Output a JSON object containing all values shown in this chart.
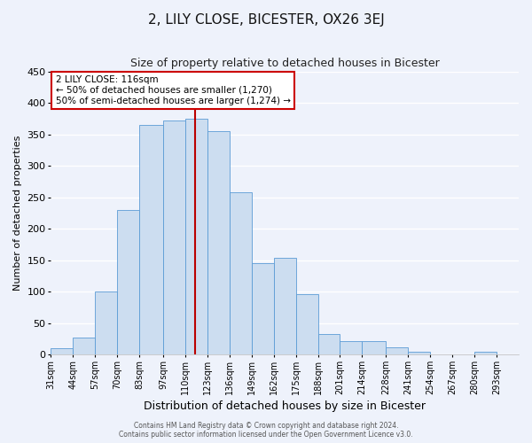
{
  "title": "2, LILY CLOSE, BICESTER, OX26 3EJ",
  "subtitle": "Size of property relative to detached houses in Bicester",
  "xlabel": "Distribution of detached houses by size in Bicester",
  "ylabel": "Number of detached properties",
  "bar_labels": [
    "31sqm",
    "44sqm",
    "57sqm",
    "70sqm",
    "83sqm",
    "97sqm",
    "110sqm",
    "123sqm",
    "136sqm",
    "149sqm",
    "162sqm",
    "175sqm",
    "188sqm",
    "201sqm",
    "214sqm",
    "228sqm",
    "241sqm",
    "254sqm",
    "267sqm",
    "280sqm",
    "293sqm"
  ],
  "bar_values": [
    10,
    27,
    100,
    230,
    365,
    372,
    375,
    355,
    258,
    145,
    153,
    96,
    33,
    21,
    22,
    11,
    5,
    0,
    0,
    5,
    0
  ],
  "bar_color": "#ccddf0",
  "bar_edge_color": "#5b9bd5",
  "ylim": [
    0,
    450
  ],
  "yticks": [
    0,
    50,
    100,
    150,
    200,
    250,
    300,
    350,
    400,
    450
  ],
  "vline_x": 116,
  "vline_color": "#bb0000",
  "annotation_title": "2 LILY CLOSE: 116sqm",
  "annotation_line1": "← 50% of detached houses are smaller (1,270)",
  "annotation_line2": "50% of semi-detached houses are larger (1,274) →",
  "annotation_box_color": "#ffffff",
  "annotation_box_edge": "#cc0000",
  "footer1": "Contains HM Land Registry data © Crown copyright and database right 2024.",
  "footer2": "Contains public sector information licensed under the Open Government Licence v3.0.",
  "bg_color": "#eef2fb",
  "grid_color": "#ffffff",
  "bin_edges": [
    31,
    44,
    57,
    70,
    83,
    97,
    110,
    123,
    136,
    149,
    162,
    175,
    188,
    201,
    214,
    228,
    241,
    254,
    267,
    280,
    293,
    306
  ]
}
